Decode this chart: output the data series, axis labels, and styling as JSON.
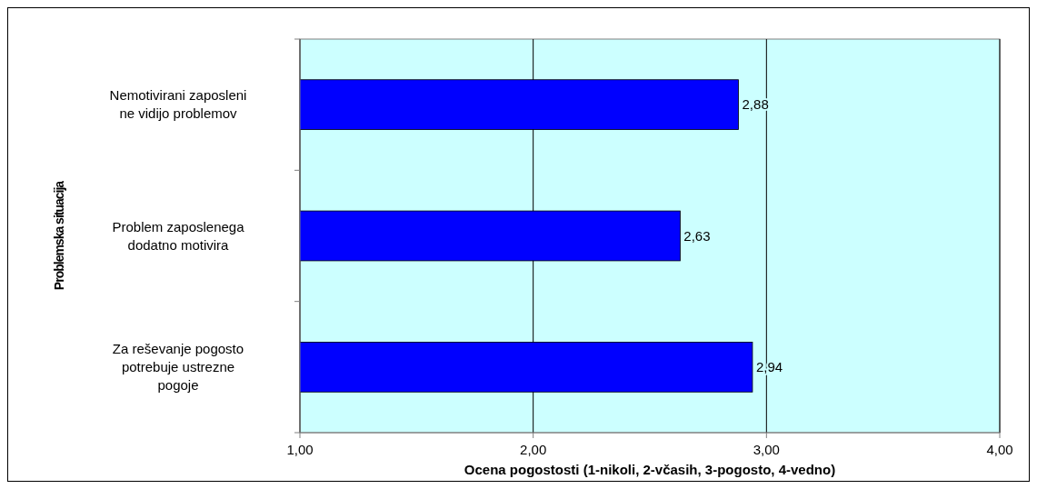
{
  "chart_data": {
    "type": "bar",
    "orientation": "horizontal",
    "xlabel": "Ocena pogostosti (1-nikoli, 2-včasih, 3-pogosto, 4-vedno)",
    "ylabel": "Problemska situacija",
    "categories": [
      "Nemotivirani zaposleni ne vidijo problemov",
      "Problem zaposlenega dodatno motivira",
      "Za reševanje pogosto potrebuje ustrezne pogoje"
    ],
    "values": [
      2.88,
      2.63,
      2.94
    ],
    "value_labels": [
      "2,88",
      "2,63",
      "2,94"
    ],
    "color": "#0000ff",
    "xlim": [
      1,
      4
    ],
    "xticks": [
      {
        "value": 1,
        "label": "1,00"
      },
      {
        "value": 2,
        "label": "2,00"
      },
      {
        "value": 3,
        "label": "3,00"
      },
      {
        "value": 4,
        "label": "4,00"
      }
    ],
    "grid": "x"
  }
}
